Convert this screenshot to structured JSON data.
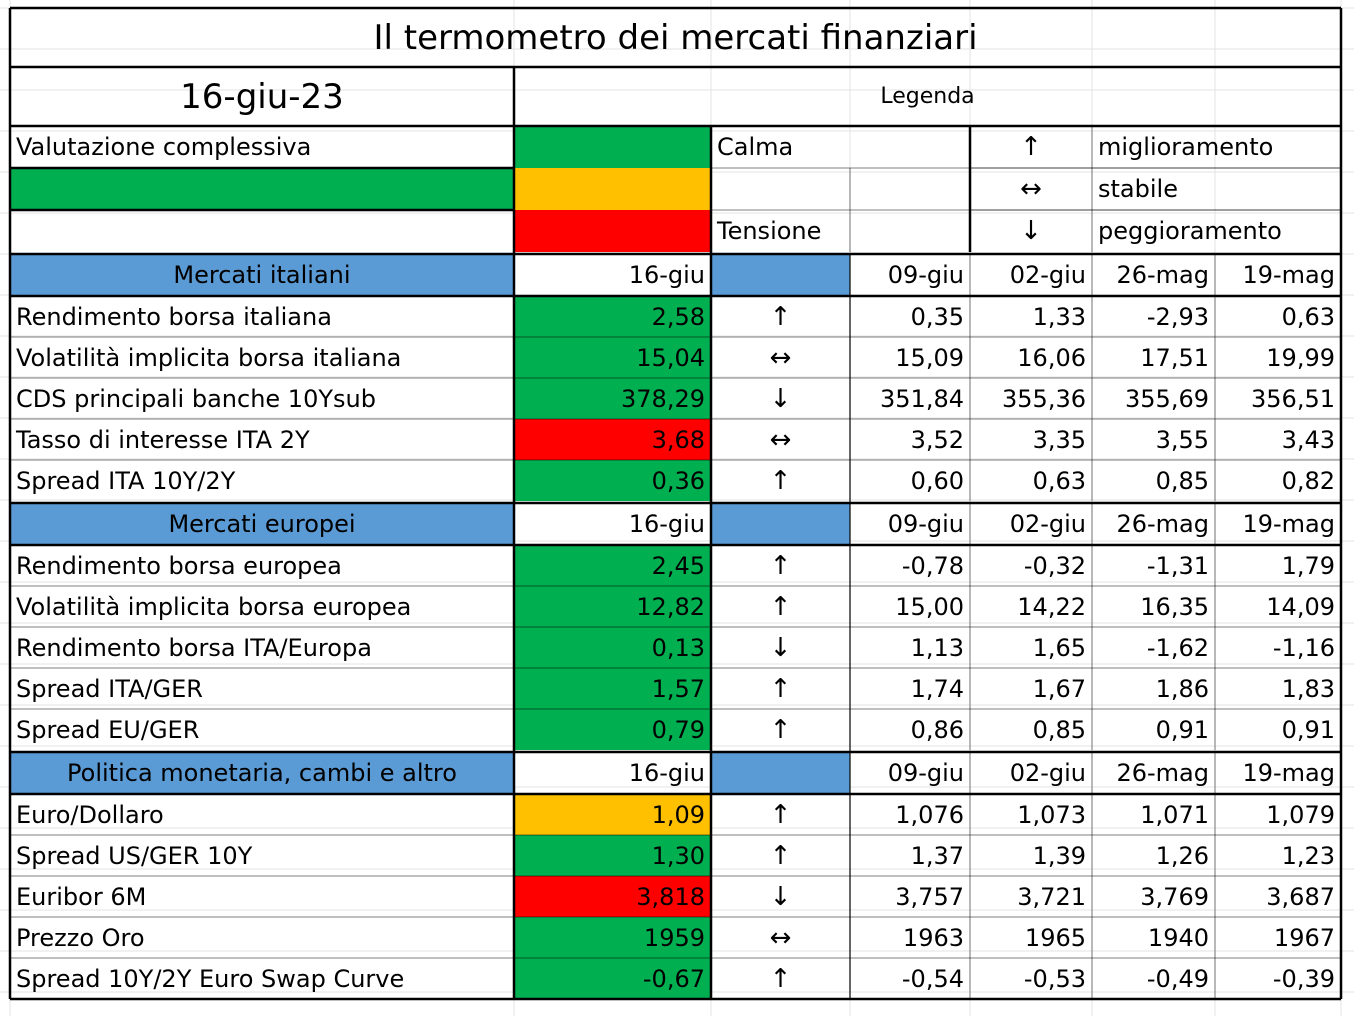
{
  "title": "Il termometro dei mercati finanziari",
  "date": "16-giu-23",
  "legend_title": "Legenda",
  "overall_label": "Valutazione complessiva",
  "legend": {
    "calm": "Calma",
    "tension": "Tensione",
    "improve_arrow": "↑",
    "improve": "miglioramento",
    "stable_arrow": "↔",
    "stable": "stabile",
    "worse_arrow": "↓",
    "worse": "peggioramento"
  },
  "colors": {
    "green": "#00b050",
    "orange": "#ffc000",
    "red": "#ff0000",
    "blue": "#5b9bd5"
  },
  "sections": [
    {
      "name": "Mercati italiani",
      "headers": [
        "16-giu",
        "09-giu",
        "02-giu",
        "26-mag",
        "19-mag"
      ],
      "rows": [
        {
          "label": "Rendimento borsa italiana",
          "current": "2,58",
          "status": "green",
          "trend": "↑",
          "history": [
            "0,35",
            "1,33",
            "-2,93",
            "0,63"
          ]
        },
        {
          "label": "Volatilità implicita borsa italiana",
          "current": "15,04",
          "status": "green",
          "trend": "↔",
          "history": [
            "15,09",
            "16,06",
            "17,51",
            "19,99"
          ]
        },
        {
          "label": "CDS principali banche 10Ysub",
          "current": "378,29",
          "status": "green",
          "trend": "↓",
          "history": [
            "351,84",
            "355,36",
            "355,69",
            "356,51"
          ]
        },
        {
          "label": "Tasso di interesse ITA 2Y",
          "current": "3,68",
          "status": "red",
          "trend": "↔",
          "history": [
            "3,52",
            "3,35",
            "3,55",
            "3,43"
          ]
        },
        {
          "label": "Spread ITA 10Y/2Y",
          "current": "0,36",
          "status": "green",
          "trend": "↑",
          "history": [
            "0,60",
            "0,63",
            "0,85",
            "0,82"
          ]
        }
      ]
    },
    {
      "name": "Mercati europei",
      "headers": [
        "16-giu",
        "09-giu",
        "02-giu",
        "26-mag",
        "19-mag"
      ],
      "rows": [
        {
          "label": "Rendimento borsa europea",
          "current": "2,45",
          "status": "green",
          "trend": "↑",
          "history": [
            "-0,78",
            "-0,32",
            "-1,31",
            "1,79"
          ]
        },
        {
          "label": "Volatilità implicita borsa europea",
          "current": "12,82",
          "status": "green",
          "trend": "↑",
          "history": [
            "15,00",
            "14,22",
            "16,35",
            "14,09"
          ]
        },
        {
          "label": "Rendimento borsa ITA/Europa",
          "current": "0,13",
          "status": "green",
          "trend": "↓",
          "history": [
            "1,13",
            "1,65",
            "-1,62",
            "-1,16"
          ]
        },
        {
          "label": "Spread ITA/GER",
          "current": "1,57",
          "status": "green",
          "trend": "↑",
          "history": [
            "1,74",
            "1,67",
            "1,86",
            "1,83"
          ]
        },
        {
          "label": "Spread EU/GER",
          "current": "0,79",
          "status": "green",
          "trend": "↑",
          "history": [
            "0,86",
            "0,85",
            "0,91",
            "0,91"
          ]
        }
      ]
    },
    {
      "name": "Politica monetaria, cambi e altro",
      "headers": [
        "16-giu",
        "09-giu",
        "02-giu",
        "26-mag",
        "19-mag"
      ],
      "rows": [
        {
          "label": "Euro/Dollaro",
          "current": "1,09",
          "status": "orange",
          "trend": "↑",
          "history": [
            "1,076",
            "1,073",
            "1,071",
            "1,079"
          ]
        },
        {
          "label": "Spread US/GER 10Y",
          "current": "1,30",
          "status": "green",
          "trend": "↑",
          "history": [
            "1,37",
            "1,39",
            "1,26",
            "1,23"
          ]
        },
        {
          "label": "Euribor 6M",
          "current": "3,818",
          "status": "red",
          "trend": "↓",
          "history": [
            "3,757",
            "3,721",
            "3,769",
            "3,687"
          ]
        },
        {
          "label": "Prezzo Oro",
          "current": "1959",
          "status": "green",
          "trend": "↔",
          "history": [
            "1963",
            "1965",
            "1940",
            "1967"
          ]
        },
        {
          "label": "Spread 10Y/2Y Euro Swap Curve",
          "current": "-0,67",
          "status": "green",
          "trend": "↑",
          "history": [
            "-0,54",
            "-0,53",
            "-0,49",
            "-0,39"
          ]
        }
      ]
    }
  ]
}
